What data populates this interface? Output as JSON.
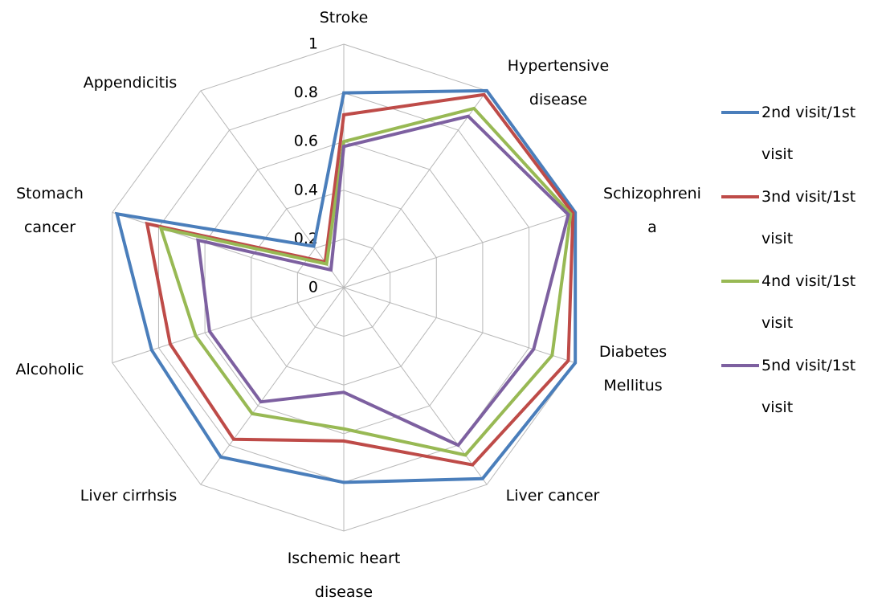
{
  "chart_data": {
    "type": "radar",
    "categories": [
      "Stroke",
      "Hypertensive disease",
      "Schizophrenia",
      "Diabetes Mellitus",
      "Liver cancer",
      "Ischemic heart disease",
      "Liver cirrhsis",
      "Alcoholic",
      "Stomach cancer",
      "Appendicitis"
    ],
    "series": [
      {
        "name": "2nd visit/1st visit",
        "color": "#4a7ebb",
        "values": [
          0.8,
          1.0,
          1.0,
          1.0,
          0.97,
          0.8,
          0.86,
          0.83,
          0.98,
          0.21
        ]
      },
      {
        "name": "3nd visit/1st visit",
        "color": "#be4b48",
        "values": [
          0.71,
          0.98,
          0.99,
          0.97,
          0.9,
          0.63,
          0.77,
          0.75,
          0.85,
          0.13
        ]
      },
      {
        "name": "4nd visit/1st visit",
        "color": "#98b954",
        "values": [
          0.6,
          0.91,
          0.98,
          0.9,
          0.85,
          0.58,
          0.64,
          0.64,
          0.79,
          0.12
        ]
      },
      {
        "name": "5nd visit/1st visit",
        "color": "#7d60a0",
        "values": [
          0.58,
          0.87,
          0.97,
          0.82,
          0.8,
          0.43,
          0.58,
          0.58,
          0.63,
          0.09
        ]
      }
    ],
    "ylim": [
      0,
      1
    ],
    "yticks": [
      0,
      0.2,
      0.4,
      0.6,
      0.8,
      1
    ],
    "grid": true,
    "legend": "right"
  }
}
